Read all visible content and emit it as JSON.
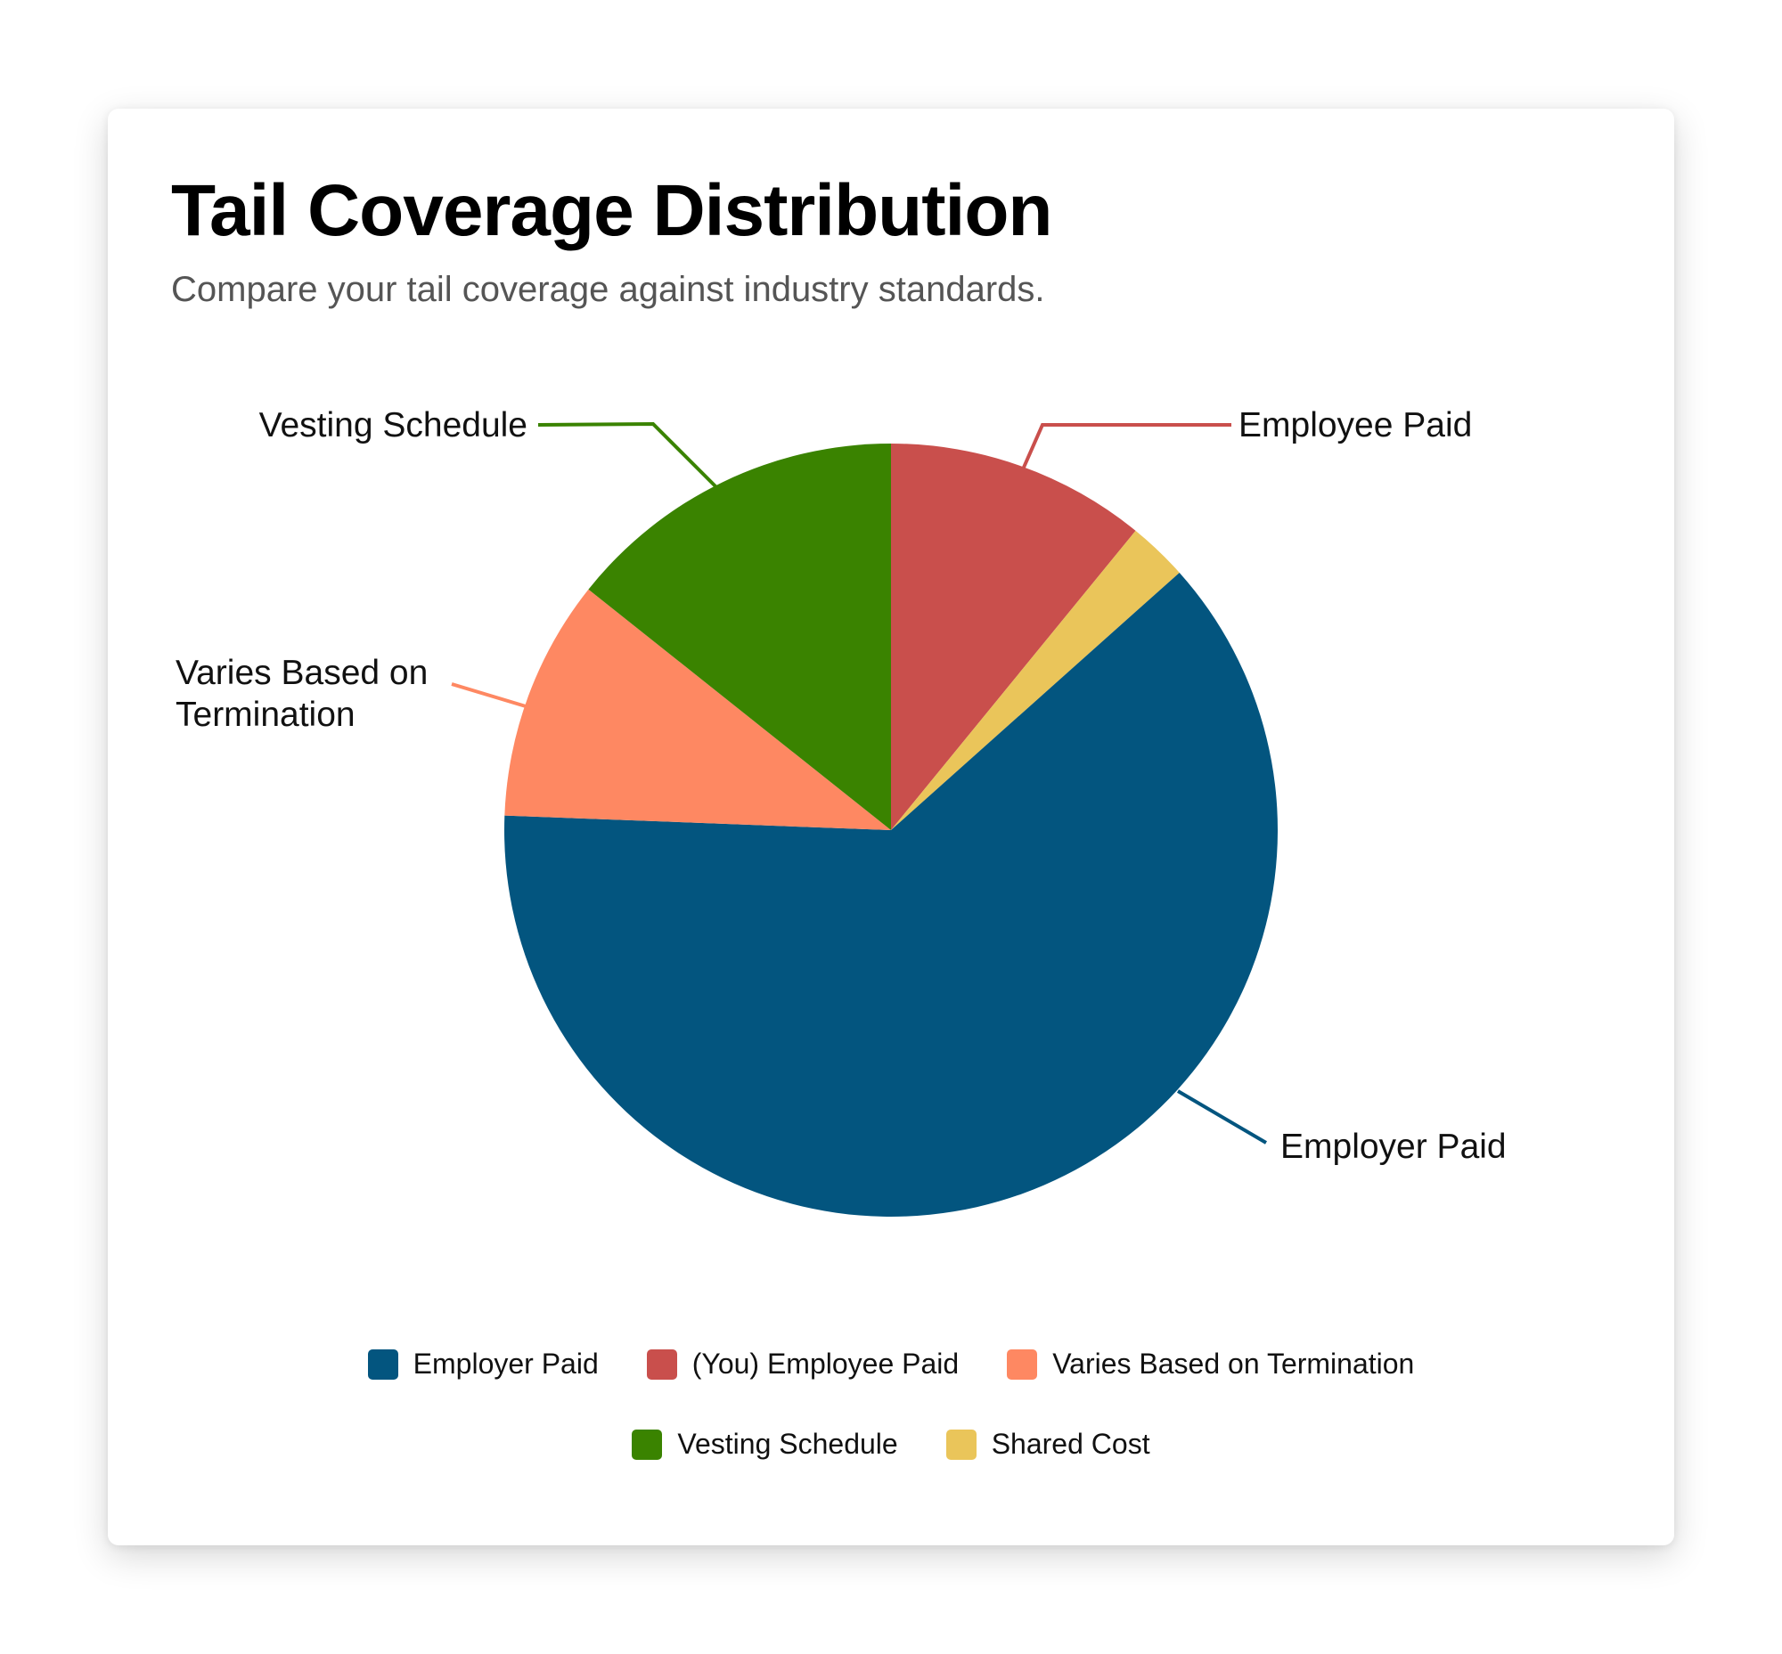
{
  "header": {
    "title": "Tail Coverage Distribution",
    "subtitle": "Compare your tail coverage against industry standards."
  },
  "chart_data": {
    "type": "pie",
    "title": "Tail Coverage Distribution",
    "subtitle": "Compare your tail coverage against industry standards.",
    "start_angle_deg": 0,
    "direction": "clockwise",
    "slices": [
      {
        "key": "employee",
        "label": "(You) Employee Paid",
        "callout": "Employee Paid",
        "value": 10.9,
        "color": "#C94F4C"
      },
      {
        "key": "shared",
        "label": "Shared Cost",
        "callout": "",
        "value": 2.5,
        "color": "#EAC55A"
      },
      {
        "key": "employer",
        "label": "Employer Paid",
        "callout": "Employer Paid",
        "value": 62.2,
        "color": "#03557F"
      },
      {
        "key": "varies",
        "label": "Varies Based on Termination",
        "callout": "Varies Based on Termination",
        "value": 10.1,
        "color": "#FE8862"
      },
      {
        "key": "vesting",
        "label": "Vesting Schedule",
        "callout": "Vesting Schedule",
        "value": 14.3,
        "color": "#3A8300"
      }
    ],
    "legend": {
      "position": "bottom",
      "entries": [
        "Employer Paid",
        "(You) Employee Paid",
        "Varies Based on Termination",
        "Vesting Schedule",
        "Shared Cost"
      ]
    },
    "units": "percent (estimated from slice angles)"
  },
  "callouts": {
    "employee": "Employee Paid",
    "employer": "Employer Paid",
    "varies_line1": "Varies Based on",
    "varies_line2": "Termination",
    "vesting": "Vesting Schedule"
  },
  "legend": {
    "row1": [
      {
        "label": "Employer Paid",
        "color": "#03557F"
      },
      {
        "label": "(You) Employee Paid",
        "color": "#C94F4C"
      },
      {
        "label": "Varies Based on Termination",
        "color": "#FE8862"
      }
    ],
    "row2": [
      {
        "label": "Vesting Schedule",
        "color": "#3A8300"
      },
      {
        "label": "Shared Cost",
        "color": "#EAC55A"
      }
    ]
  }
}
